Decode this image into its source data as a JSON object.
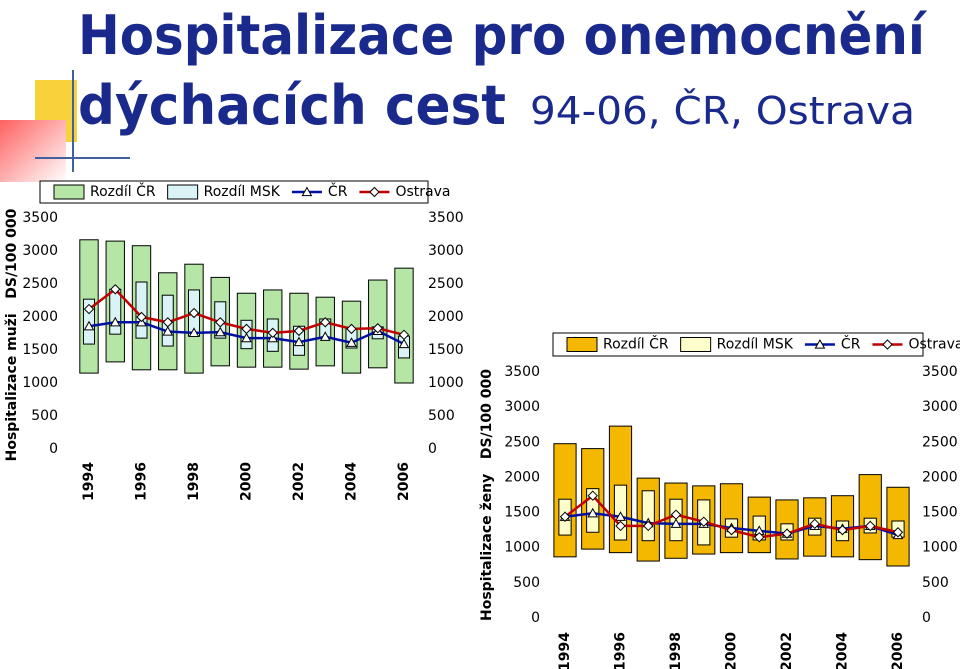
{
  "header": {
    "title_line1": "Hospitalizace pro onemocnění",
    "title_line2": "dýchacích cest",
    "title_suffix": "94-06, ČR, Ostrava"
  },
  "chart_data": [
    {
      "type": "combo",
      "y_label": "Hospitalizace muži   DS/100 000",
      "categories": [
        "1994",
        null,
        "1996",
        null,
        "1998",
        null,
        "2000",
        null,
        "2002",
        null,
        "2004",
        null,
        "2006"
      ],
      "ylim": [
        0,
        3500
      ],
      "yticks": [
        0,
        500,
        1000,
        1500,
        2000,
        2500,
        3000,
        3500
      ],
      "series": [
        {
          "name": "Rozdíl ČR",
          "type": "floating_bar",
          "color": "#b5e6a6",
          "low": [
            1150,
            1320,
            1200,
            1200,
            1150,
            1260,
            1240,
            1240,
            1210,
            1260,
            1150,
            1230,
            1000
          ],
          "high": [
            3170,
            3150,
            3080,
            2670,
            2800,
            2600,
            2360,
            2410,
            2360,
            2300,
            2240,
            2560,
            2740
          ]
        },
        {
          "name": "Rozdíl MSK",
          "type": "floating_bar",
          "color": "#d9f3f7",
          "low": [
            1590,
            1740,
            1680,
            1560,
            1710,
            1680,
            1520,
            1480,
            1420,
            1680,
            1530,
            1670,
            1380
          ],
          "high": [
            2270,
            2420,
            2530,
            2330,
            2410,
            2230,
            1950,
            1970,
            1860,
            1970,
            1830,
            1850,
            1710
          ]
        },
        {
          "name": "ČR",
          "type": "line",
          "marker": "triangle",
          "color": "#0010a0",
          "values": [
            1860,
            1920,
            1920,
            1780,
            1760,
            1770,
            1680,
            1680,
            1620,
            1700,
            1610,
            1790,
            1590
          ]
        },
        {
          "name": "Ostrava",
          "type": "line",
          "marker": "diamond",
          "color": "#c00000",
          "values": [
            2120,
            2420,
            2000,
            1920,
            2060,
            1920,
            1820,
            1760,
            1790,
            1920,
            1820,
            1830,
            1730
          ]
        }
      ]
    },
    {
      "type": "combo",
      "y_label": "Hospitalizace ženy   DS/100 000",
      "categories": [
        "1994",
        null,
        "1996",
        null,
        "1998",
        null,
        "2000",
        null,
        "2002",
        null,
        "2004",
        null,
        "2006"
      ],
      "ylim": [
        0,
        3500
      ],
      "yticks": [
        0,
        500,
        1000,
        1500,
        2000,
        2500,
        3000,
        3500
      ],
      "series": [
        {
          "name": "Rozdíl ČR",
          "type": "floating_bar",
          "color": "#f5b800",
          "low": [
            870,
            980,
            930,
            810,
            850,
            910,
            930,
            930,
            840,
            880,
            870,
            830,
            740
          ],
          "high": [
            2480,
            2410,
            2730,
            1990,
            1920,
            1880,
            1910,
            1720,
            1680,
            1710,
            1740,
            2040,
            1860
          ]
        },
        {
          "name": "Rozdíl MSK",
          "type": "floating_bar",
          "color": "#ffffcc",
          "low": [
            1180,
            1220,
            1110,
            1100,
            1100,
            1040,
            1150,
            1110,
            1110,
            1180,
            1100,
            1210,
            1150
          ],
          "high": [
            1690,
            1840,
            1890,
            1810,
            1690,
            1680,
            1410,
            1450,
            1340,
            1420,
            1380,
            1420,
            1380
          ]
        },
        {
          "name": "ČR",
          "type": "line",
          "marker": "triangle",
          "color": "#0010a0",
          "values": [
            1440,
            1490,
            1440,
            1350,
            1340,
            1340,
            1280,
            1240,
            1200,
            1310,
            1270,
            1310,
            1180
          ]
        },
        {
          "name": "Ostrava",
          "type": "line",
          "marker": "diamond",
          "color": "#c00000",
          "values": [
            1440,
            1740,
            1310,
            1310,
            1470,
            1370,
            1250,
            1150,
            1200,
            1340,
            1250,
            1310,
            1220
          ]
        }
      ]
    }
  ]
}
